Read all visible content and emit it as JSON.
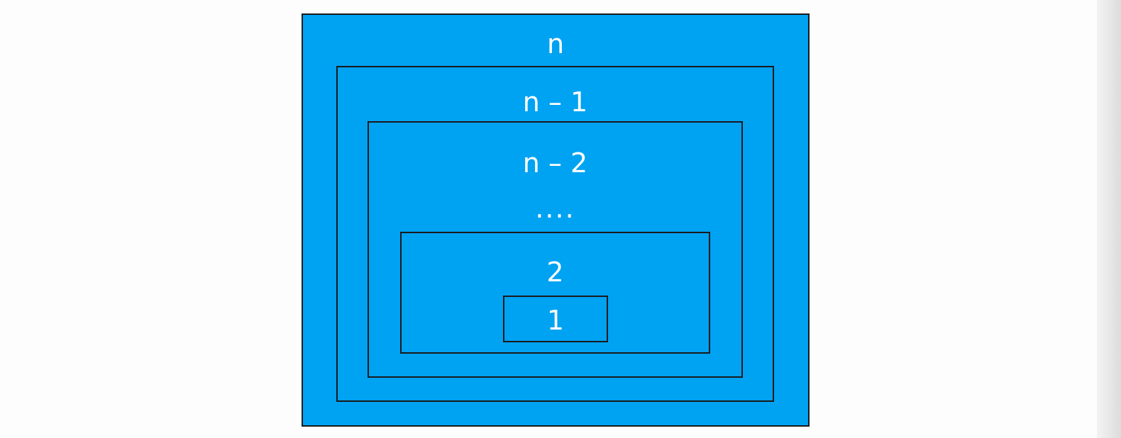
{
  "diagram": {
    "levels": {
      "n": "n",
      "n_minus_1": "n – 1",
      "n_minus_2": "n – 2",
      "ellipsis": "....",
      "two": "2",
      "one": "1"
    }
  },
  "colors": {
    "box_fill": "#00a2f2",
    "box_border": "#1a1a1a",
    "label_text": "#ffffff",
    "background": "#fdfdfd"
  }
}
